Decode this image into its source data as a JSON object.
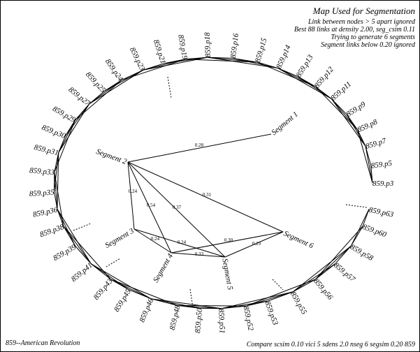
{
  "header": {
    "title": "Map Used for Segmentation",
    "notes": [
      "Link between nodes > 5 apart ignored",
      "Best 88 links at density 2.00, seg_csim 0.11",
      "Trying to generate 6 segments",
      "Segment links below 0.20 ignored"
    ]
  },
  "nodes": [
    "859.p3",
    "859.p5",
    "859.p7",
    "859.p8",
    "859.p9",
    "859.p11",
    "859.p12",
    "859.p13",
    "859.p14",
    "859.p15",
    "859.p16",
    "859.p18",
    "859.p19",
    "859.p21",
    "859.p23",
    "859.p24",
    "859.p25",
    "859.p27",
    "859.p29",
    "859.p30",
    "859.p31",
    "859.p33",
    "859.p35",
    "859.p36",
    "859.p38",
    "859.p39",
    "859.p41",
    "859.p43",
    "859.p45",
    "859.p46",
    "859.p48",
    "859.p50",
    "859.p51",
    "859.p52",
    "859.p53",
    "859.p55",
    "859.p56",
    "859.p57",
    "859.p58",
    "859.p60",
    "859.p63"
  ],
  "segments": [
    "Segment 1",
    "Segment 2",
    "Segment 3",
    "Segment 4",
    "Segment 5",
    "Segment 6"
  ],
  "links": [
    "0.28",
    "0.24",
    "0.54",
    "0.37",
    "0.31",
    "0.24",
    "0.24",
    "0.30",
    "0.29",
    "0.33"
  ],
  "footer": {
    "left": "859--American Revolution",
    "right": "Compare scsim 0.10 vici 5 sdens 2.0 nseg 6 segsim 0.20 859"
  }
}
